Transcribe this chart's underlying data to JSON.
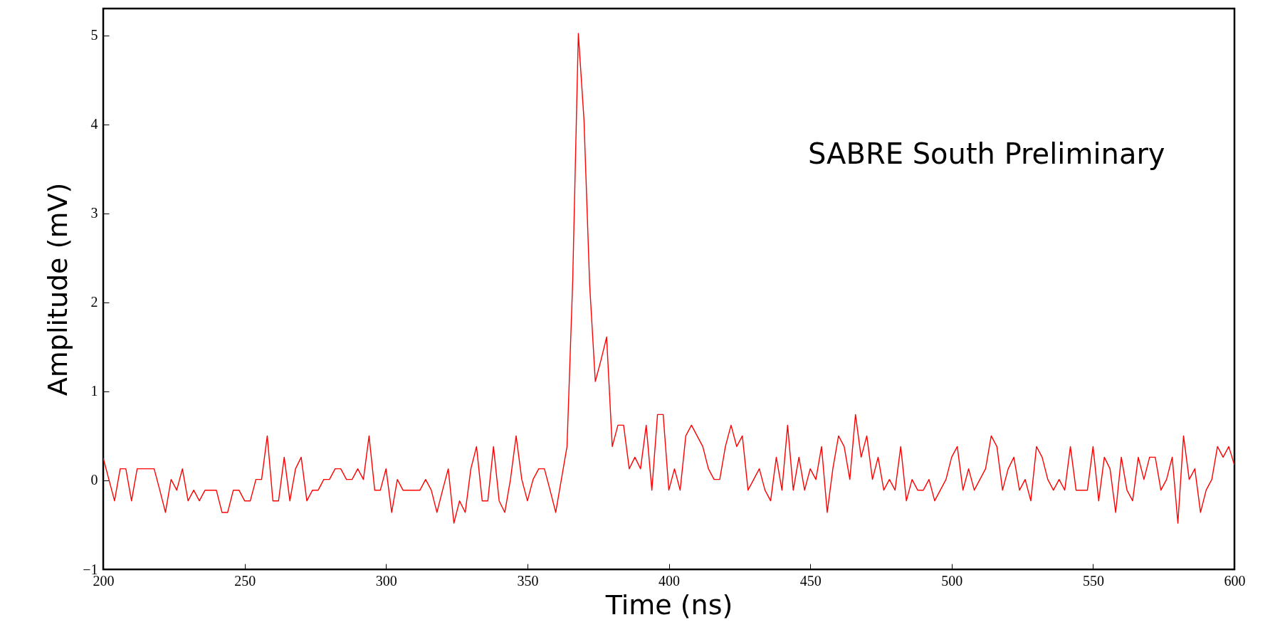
{
  "chart_data": {
    "type": "line",
    "xlabel": "Time (ns)",
    "ylabel": "Amplitude (mV)",
    "annotations": [
      "SABRE South Preliminary"
    ],
    "xlim": [
      200,
      600
    ],
    "xticks": [
      200,
      250,
      300,
      350,
      400,
      450,
      500,
      550,
      600
    ],
    "ylim": [
      -1,
      5.3
    ],
    "yticks": [
      -1,
      0,
      1,
      2,
      3,
      4,
      5
    ],
    "grid": false,
    "marker": "none",
    "line_style": "solid",
    "x": [
      200,
      202,
      204,
      206,
      208,
      210,
      212,
      214,
      216,
      218,
      220,
      222,
      224,
      226,
      228,
      230,
      232,
      234,
      236,
      238,
      240,
      242,
      244,
      246,
      248,
      250,
      252,
      254,
      256,
      258,
      260,
      262,
      264,
      266,
      268,
      270,
      272,
      274,
      276,
      278,
      280,
      282,
      284,
      286,
      288,
      290,
      292,
      294,
      296,
      298,
      300,
      302,
      304,
      306,
      308,
      310,
      312,
      314,
      316,
      318,
      320,
      322,
      324,
      326,
      328,
      330,
      332,
      334,
      336,
      338,
      340,
      342,
      344,
      346,
      348,
      350,
      352,
      354,
      356,
      358,
      360,
      362,
      364,
      366,
      368,
      370,
      372,
      374,
      376,
      378,
      380,
      382,
      384,
      386,
      388,
      390,
      392,
      394,
      396,
      398,
      400,
      402,
      404,
      406,
      408,
      410,
      412,
      414,
      416,
      418,
      420,
      422,
      424,
      426,
      428,
      430,
      432,
      434,
      436,
      438,
      440,
      442,
      444,
      446,
      448,
      450,
      452,
      454,
      456,
      458,
      460,
      462,
      464,
      466,
      468,
      470,
      472,
      474,
      476,
      478,
      480,
      482,
      484,
      486,
      488,
      490,
      492,
      494,
      496,
      498,
      500,
      502,
      504,
      506,
      508,
      510,
      512,
      514,
      516,
      518,
      520,
      522,
      524,
      526,
      528,
      530,
      532,
      534,
      536,
      538,
      540,
      542,
      544,
      546,
      548,
      550,
      552,
      554,
      556,
      558,
      560,
      562,
      564,
      566,
      568,
      570,
      572,
      574,
      576,
      578,
      580,
      582,
      584,
      586,
      588,
      590,
      592,
      594,
      596,
      598,
      600
    ],
    "series": [
      {
        "color": "#ff0000",
        "values": [
          0.25,
          0.01,
          -0.23,
          0.13,
          0.13,
          -0.23,
          0.13,
          0.13,
          0.13,
          0.13,
          -0.11,
          -0.36,
          0.01,
          -0.11,
          0.13,
          -0.23,
          -0.11,
          -0.23,
          -0.11,
          -0.11,
          -0.11,
          -0.36,
          -0.36,
          -0.11,
          -0.11,
          -0.23,
          -0.23,
          0.01,
          0.01,
          0.5,
          -0.23,
          -0.23,
          0.26,
          -0.23,
          0.13,
          0.26,
          -0.23,
          -0.11,
          -0.11,
          0.01,
          0.01,
          0.13,
          0.13,
          0.01,
          0.01,
          0.13,
          0.01,
          0.5,
          -0.11,
          -0.11,
          0.13,
          -0.36,
          0.01,
          -0.11,
          -0.11,
          -0.11,
          -0.11,
          0.01,
          -0.11,
          -0.36,
          -0.11,
          0.13,
          -0.48,
          -0.23,
          -0.36,
          0.13,
          0.38,
          -0.23,
          -0.23,
          0.38,
          -0.23,
          -0.36,
          0.01,
          0.5,
          0.01,
          -0.23,
          0.01,
          0.13,
          0.13,
          -0.11,
          -0.36,
          0.01,
          0.38,
          2.23,
          5.02,
          4.05,
          2.2,
          1.11,
          1.35,
          1.61,
          0.38,
          0.62,
          0.62,
          0.13,
          0.26,
          0.13,
          0.62,
          -0.11,
          0.74,
          0.74,
          -0.11,
          0.13,
          -0.11,
          0.5,
          0.62,
          0.5,
          0.38,
          0.13,
          0.01,
          0.01,
          0.38,
          0.62,
          0.38,
          0.5,
          -0.11,
          0.01,
          0.13,
          -0.11,
          -0.23,
          0.26,
          -0.11,
          0.62,
          -0.11,
          0.26,
          -0.11,
          0.13,
          0.01,
          0.38,
          -0.36,
          0.13,
          0.5,
          0.38,
          0.01,
          0.74,
          0.26,
          0.5,
          0.01,
          0.26,
          -0.11,
          0.01,
          -0.11,
          0.38,
          -0.23,
          0.01,
          -0.11,
          -0.11,
          0.01,
          -0.23,
          -0.11,
          0.01,
          0.26,
          0.38,
          -0.11,
          0.13,
          -0.11,
          0.01,
          0.13,
          0.5,
          0.38,
          -0.11,
          0.13,
          0.26,
          -0.11,
          0.01,
          -0.23,
          0.38,
          0.26,
          0.01,
          -0.11,
          0.01,
          -0.11,
          0.38,
          -0.11,
          -0.11,
          -0.11,
          0.38,
          -0.23,
          0.26,
          0.13,
          -0.36,
          0.26,
          -0.11,
          -0.23,
          0.26,
          0.01,
          0.26,
          0.26,
          -0.11,
          0.01,
          0.26,
          -0.48,
          0.5,
          0.01,
          0.13,
          -0.36,
          -0.11,
          0.01,
          0.38,
          0.26,
          0.38,
          0.17
        ]
      }
    ]
  }
}
